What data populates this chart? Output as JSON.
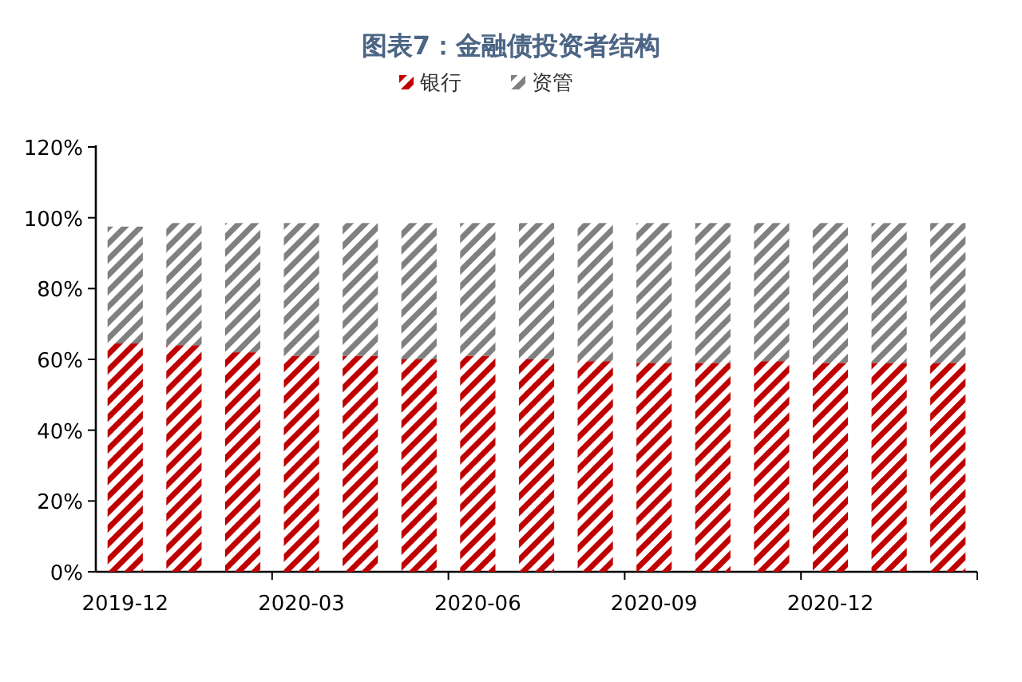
{
  "chart_data": {
    "type": "bar",
    "title": "图表7：金融债投资者结构",
    "stacked": true,
    "legend": "top",
    "grid": false,
    "categories": [
      "2019-12",
      null,
      null,
      "2020-03",
      null,
      null,
      "2020-06",
      null,
      null,
      "2020-09",
      null,
      null,
      "2020-12",
      null,
      null
    ],
    "series": [
      {
        "name": "银行",
        "color": "#c00000",
        "values": [
          64.5,
          64,
          62,
          61,
          61,
          60,
          61,
          60,
          59.5,
          59,
          59,
          59.5,
          59,
          59,
          59
        ]
      },
      {
        "name": "资管",
        "color": "#808080",
        "values": [
          33,
          34.5,
          36.5,
          37.5,
          37.5,
          38.5,
          37.5,
          38.5,
          39,
          39.5,
          39.5,
          39,
          39.5,
          39.5,
          39.5
        ]
      }
    ],
    "ylim": [
      0,
      120
    ],
    "yticks": [
      {
        "value": 0,
        "label": "0%"
      },
      {
        "value": 20,
        "label": "20%"
      },
      {
        "value": 40,
        "label": "40%"
      },
      {
        "value": 60,
        "label": "60%"
      },
      {
        "value": 80,
        "label": "80%"
      },
      {
        "value": 100,
        "label": "100%"
      },
      {
        "value": 120,
        "label": "120%"
      }
    ]
  }
}
